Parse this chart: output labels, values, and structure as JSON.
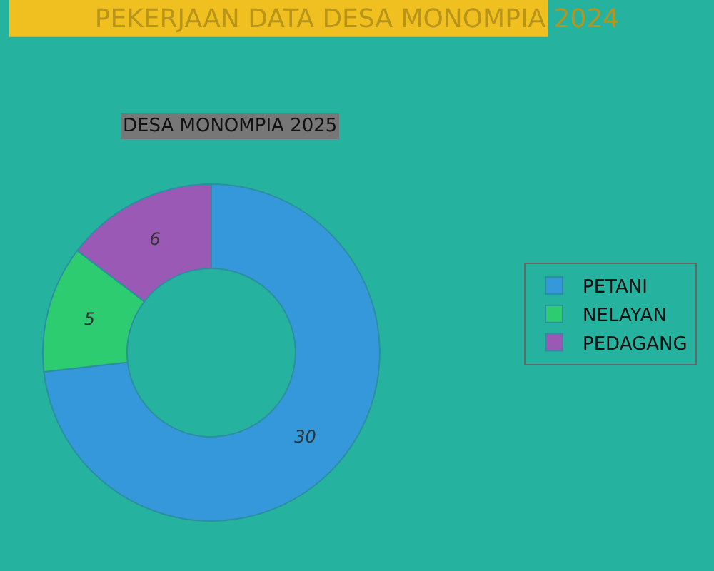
{
  "chart_data": {
    "type": "donut",
    "title": "PEKERJAAN DATA DESA MONOMPIA 2024",
    "subtitle": "DESA MONOMPIA 2025",
    "categories": [
      "PETANI",
      "NELAYAN",
      "PEDAGANG"
    ],
    "values": [
      30,
      5,
      6
    ],
    "colors": [
      "#3498db",
      "#2ecc71",
      "#9b59b6"
    ],
    "data_labels": true,
    "legend": "right"
  }
}
